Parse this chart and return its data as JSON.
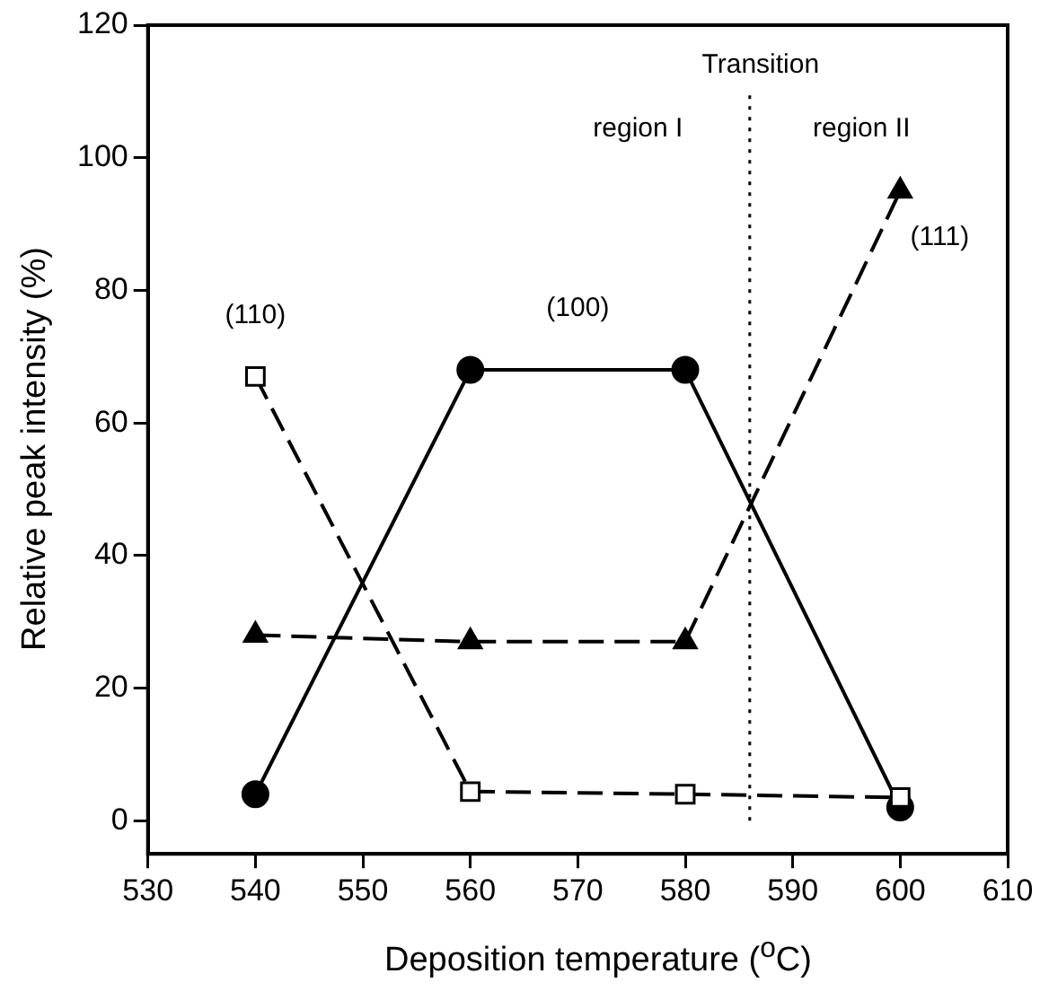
{
  "chart_data": {
    "type": "line",
    "xlabel": "Deposition temperature ($^{o}$C)",
    "ylabel": "Relative peak intensity (%)",
    "x": [
      540,
      560,
      580,
      600
    ],
    "series": [
      {
        "name": "(100)",
        "color": "#000000",
        "marker": "circle",
        "line_style": "solid",
        "values": [
          4,
          68,
          68,
          2
        ]
      },
      {
        "name": "(110)",
        "color": "#000000",
        "marker": "square",
        "line_style": "dashed",
        "values": [
          67,
          4.4,
          4,
          3.5
        ]
      },
      {
        "name": "(111)",
        "color": "#000000",
        "marker": "triangle",
        "line_style": "dashed",
        "values": [
          28,
          27,
          27,
          95
        ]
      }
    ],
    "xlim": [
      530,
      610
    ],
    "xticks": [
      530,
      540,
      550,
      560,
      570,
      580,
      590,
      600,
      610
    ],
    "ylim": [
      -5,
      120
    ],
    "yticks": [
      0,
      20,
      40,
      60,
      80,
      100,
      120
    ],
    "grid": false,
    "legend": false,
    "ref_lines": [
      {
        "axis": "x",
        "value": 586,
        "label": "Transition",
        "line_style": "dotted",
        "color": "#000000"
      }
    ],
    "annotations": [
      "region I",
      "region II"
    ]
  }
}
